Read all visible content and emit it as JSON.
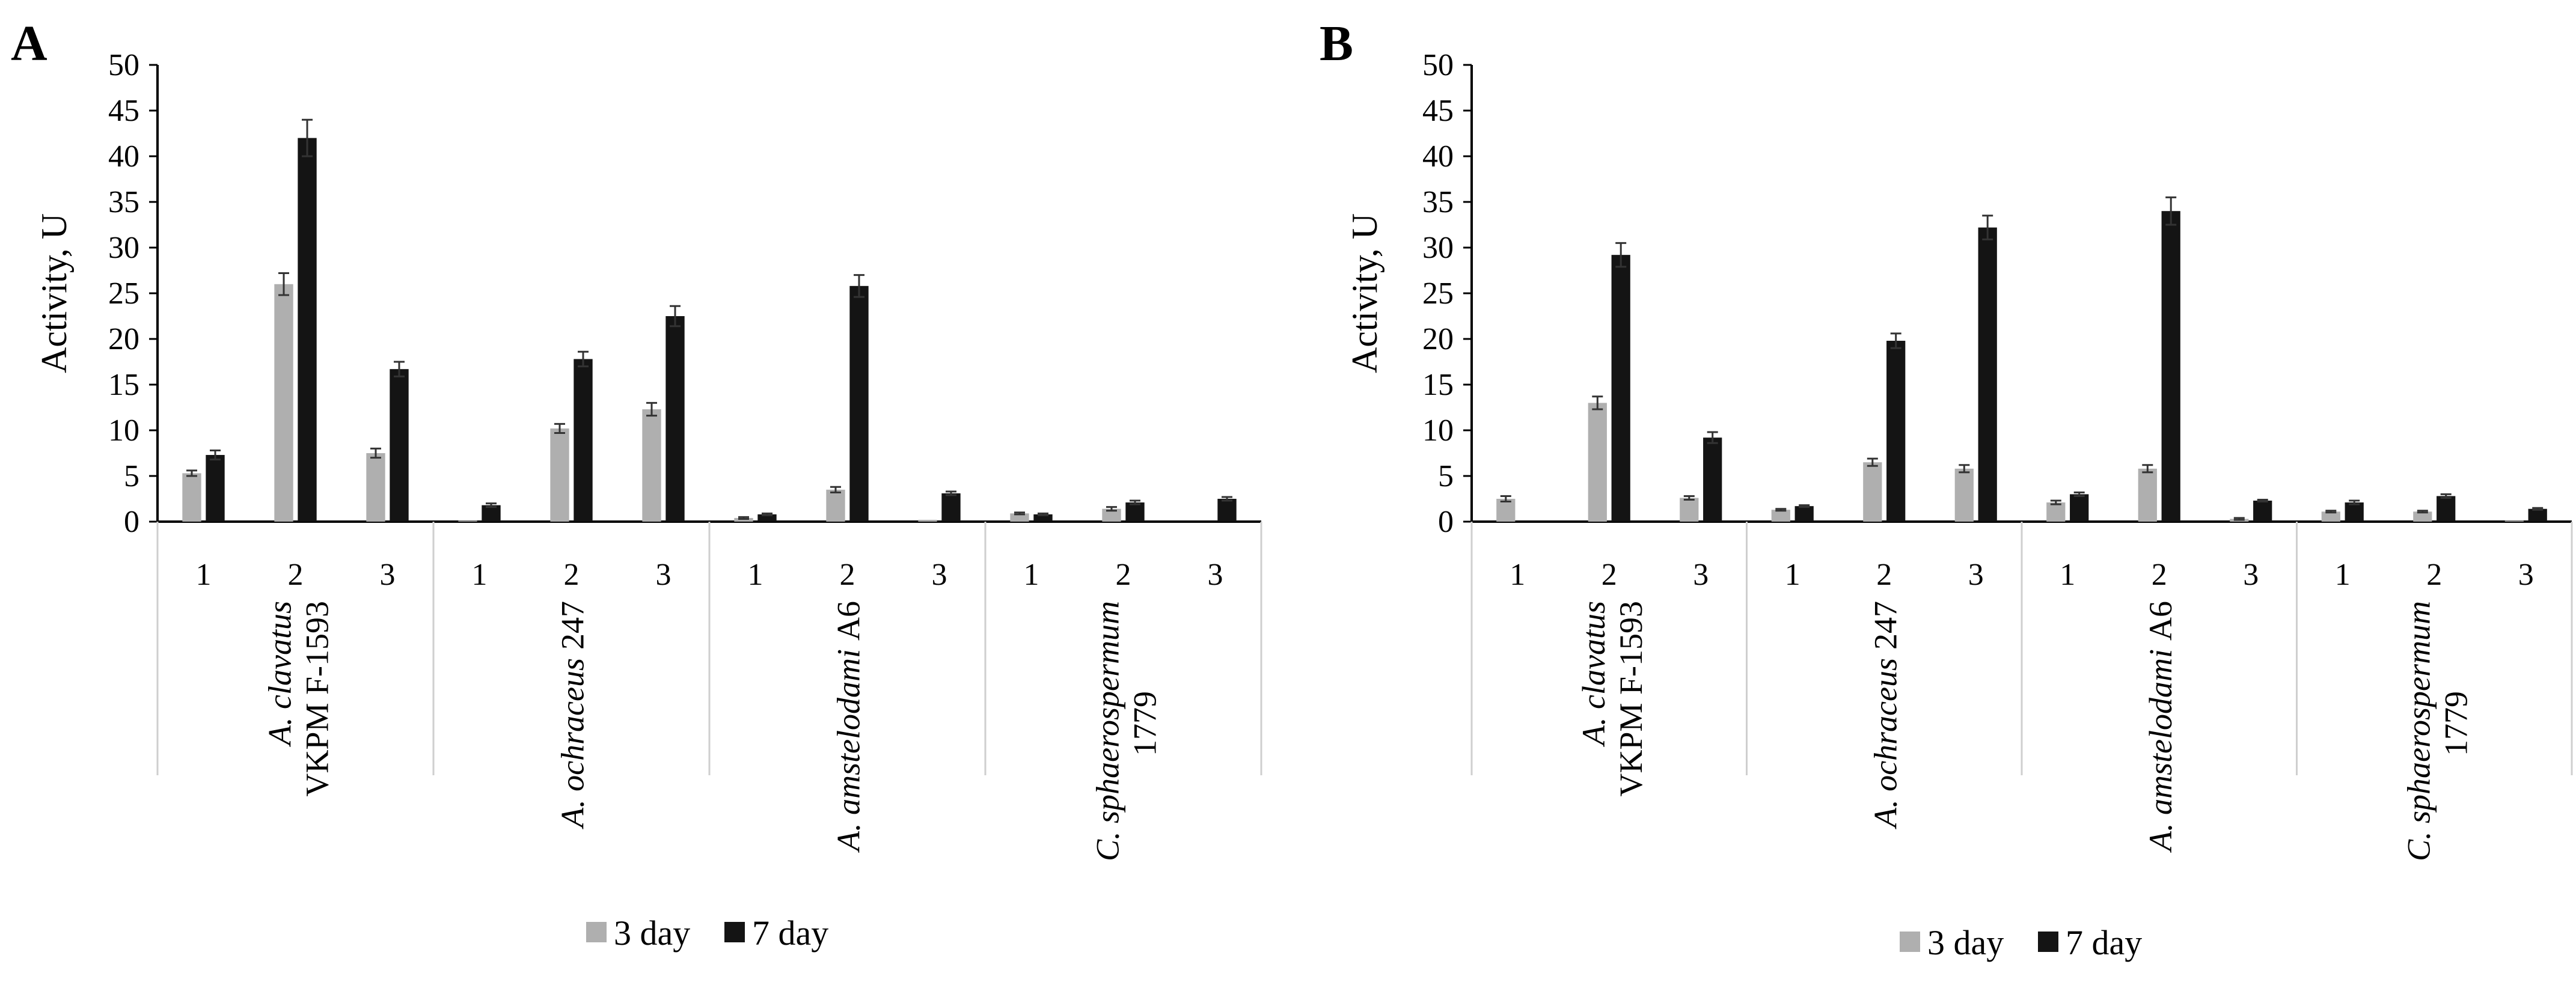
{
  "colors": {
    "day3": "#afafaf",
    "day7": "#141414",
    "axis": "#000000",
    "separator": "#cfcfcf",
    "error": "#333333"
  },
  "chart_data": [
    {
      "type": "bar",
      "panel": "A",
      "ylabel": "Activity, U",
      "ylim": [
        0,
        50
      ],
      "yticks": [
        0,
        5,
        10,
        15,
        20,
        25,
        30,
        35,
        40,
        45,
        50
      ],
      "groups": [
        {
          "name_italic": "A. clavatus",
          "name_rest": "VKPM F-1593",
          "categories": [
            "1",
            "2",
            "3"
          ]
        },
        {
          "name_italic": "A. ochraceus",
          "name_rest": "247",
          "categories": [
            "1",
            "2",
            "3"
          ]
        },
        {
          "name_italic": "A. amstelodami",
          "name_rest": "A6",
          "categories": [
            "1",
            "2",
            "3"
          ]
        },
        {
          "name_italic": "C. sphaerospermum",
          "name_rest": "1779",
          "categories": [
            "1",
            "2",
            "3"
          ]
        }
      ],
      "series": [
        {
          "name": "3 day",
          "values": [
            5.3,
            26,
            7.5,
            0.1,
            10.2,
            12.3,
            0.4,
            3.5,
            0.2,
            0.9,
            1.4,
            0
          ],
          "errors": [
            0.3,
            1.2,
            0.5,
            0,
            0.5,
            0.7,
            0.1,
            0.3,
            0,
            0.1,
            0.2,
            0
          ]
        },
        {
          "name": "7 day",
          "values": [
            7.3,
            42,
            16.7,
            1.8,
            17.8,
            22.5,
            0.8,
            25.8,
            3.1,
            0.8,
            2.1,
            2.5
          ],
          "errors": [
            0.5,
            2.0,
            0.8,
            0.2,
            0.8,
            1.1,
            0.1,
            1.2,
            0.2,
            0.1,
            0.2,
            0.2
          ]
        }
      ],
      "legend": [
        "3 day",
        "7 day"
      ]
    },
    {
      "type": "bar",
      "panel": "B",
      "ylabel": "Activity, U",
      "ylim": [
        0,
        50
      ],
      "yticks": [
        0,
        5,
        10,
        15,
        20,
        25,
        30,
        35,
        40,
        45,
        50
      ],
      "groups": [
        {
          "name_italic": "A. clavatus",
          "name_rest": "VKPM F-1593",
          "categories": [
            "1",
            "2",
            "3"
          ]
        },
        {
          "name_italic": "A. ochraceus",
          "name_rest": "247",
          "categories": [
            "1",
            "2",
            "3"
          ]
        },
        {
          "name_italic": "A. amstelodami",
          "name_rest": "A6",
          "categories": [
            "1",
            "2",
            "3"
          ]
        },
        {
          "name_italic": "C. sphaerospermum",
          "name_rest": "1779",
          "categories": [
            "1",
            "2",
            "3"
          ]
        }
      ],
      "series": [
        {
          "name": "3 day",
          "values": [
            2.5,
            13,
            2.6,
            1.3,
            6.5,
            5.8,
            2.1,
            5.8,
            0.3,
            1.1,
            1.1,
            0.1
          ],
          "errors": [
            0.3,
            0.7,
            0.2,
            0.1,
            0.4,
            0.4,
            0.2,
            0.4,
            0.1,
            0.1,
            0.1,
            0
          ]
        },
        {
          "name": "7 day",
          "values": [
            0,
            29.2,
            9.2,
            1.7,
            19.8,
            32.2,
            3,
            34,
            2.3,
            2.1,
            2.8,
            1.4
          ],
          "errors": [
            0,
            1.3,
            0.6,
            0.1,
            0.8,
            1.3,
            0.2,
            1.5,
            0.1,
            0.2,
            0.2,
            0.1
          ]
        }
      ],
      "legend": [
        "3 day",
        "7 day"
      ]
    }
  ]
}
